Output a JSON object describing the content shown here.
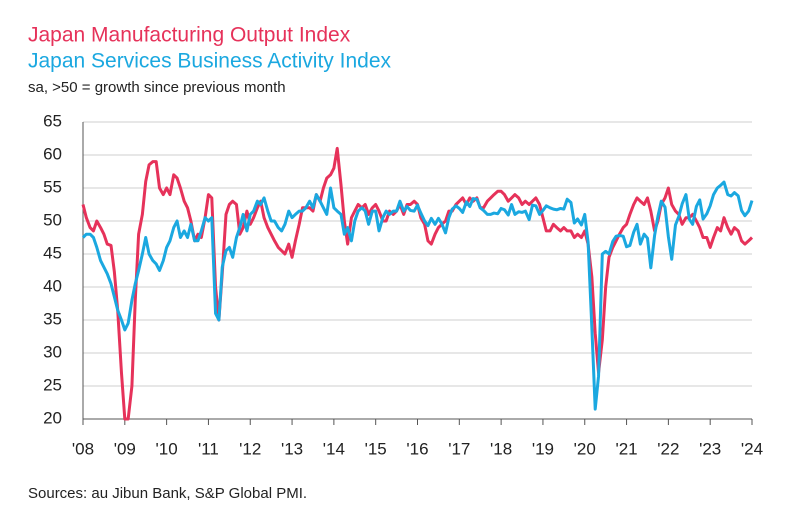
{
  "chart_data": {
    "type": "line",
    "title": "Japan Manufacturing Output Index",
    "subtitle": "Japan Services Business Activity Index",
    "y_label": "sa, >50 = growth since previous month",
    "source": "Sources: au Jibun Bank, S&P Global PMI.",
    "grid": true,
    "ylim": [
      20,
      65
    ],
    "yticks": [
      20,
      25,
      30,
      35,
      40,
      45,
      50,
      55,
      60,
      65
    ],
    "xlim": [
      2008,
      2024
    ],
    "xticks": [
      {
        "value": 2008,
        "label": "'08"
      },
      {
        "value": 2009,
        "label": "'09"
      },
      {
        "value": 2010,
        "label": "'10"
      },
      {
        "value": 2011,
        "label": "'11"
      },
      {
        "value": 2012,
        "label": "'12"
      },
      {
        "value": 2013,
        "label": "'13"
      },
      {
        "value": 2014,
        "label": "'14"
      },
      {
        "value": 2015,
        "label": "'15"
      },
      {
        "value": 2016,
        "label": "'16"
      },
      {
        "value": 2017,
        "label": "'17"
      },
      {
        "value": 2018,
        "label": "'18"
      },
      {
        "value": 2019,
        "label": "'19"
      },
      {
        "value": 2020,
        "label": "'20"
      },
      {
        "value": 2021,
        "label": "'21"
      },
      {
        "value": 2022,
        "label": "'22"
      },
      {
        "value": 2023,
        "label": "'23"
      },
      {
        "value": 2024,
        "label": "'24"
      }
    ],
    "x": [
      2008,
      2008.08,
      2008.17,
      2008.25,
      2008.33,
      2008.42,
      2008.5,
      2008.58,
      2008.67,
      2008.75,
      2008.83,
      2008.92,
      2009,
      2009.08,
      2009.17,
      2009.25,
      2009.33,
      2009.42,
      2009.5,
      2009.58,
      2009.67,
      2009.75,
      2009.83,
      2009.92,
      2010,
      2010.08,
      2010.17,
      2010.25,
      2010.33,
      2010.42,
      2010.5,
      2010.58,
      2010.67,
      2010.75,
      2010.83,
      2010.92,
      2011,
      2011.08,
      2011.17,
      2011.25,
      2011.33,
      2011.42,
      2011.5,
      2011.58,
      2011.67,
      2011.75,
      2011.83,
      2011.92,
      2012,
      2012.08,
      2012.17,
      2012.25,
      2012.33,
      2012.42,
      2012.5,
      2012.58,
      2012.67,
      2012.75,
      2012.83,
      2012.92,
      2013,
      2013.08,
      2013.17,
      2013.25,
      2013.33,
      2013.42,
      2013.5,
      2013.58,
      2013.67,
      2013.75,
      2013.83,
      2013.92,
      2014,
      2014.08,
      2014.17,
      2014.25,
      2014.33,
      2014.42,
      2014.5,
      2014.58,
      2014.67,
      2014.75,
      2014.83,
      2014.92,
      2015,
      2015.08,
      2015.17,
      2015.25,
      2015.33,
      2015.42,
      2015.5,
      2015.58,
      2015.67,
      2015.75,
      2015.83,
      2015.92,
      2016,
      2016.08,
      2016.17,
      2016.25,
      2016.33,
      2016.42,
      2016.5,
      2016.58,
      2016.67,
      2016.75,
      2016.83,
      2016.92,
      2017,
      2017.08,
      2017.17,
      2017.25,
      2017.33,
      2017.42,
      2017.5,
      2017.58,
      2017.67,
      2017.75,
      2017.83,
      2017.92,
      2018,
      2018.08,
      2018.17,
      2018.25,
      2018.33,
      2018.42,
      2018.5,
      2018.58,
      2018.67,
      2018.75,
      2018.83,
      2018.92,
      2019,
      2019.08,
      2019.17,
      2019.25,
      2019.33,
      2019.42,
      2019.5,
      2019.58,
      2019.67,
      2019.75,
      2019.83,
      2019.92,
      2020,
      2020.08,
      2020.17,
      2020.25,
      2020.33,
      2020.42,
      2020.5,
      2020.58,
      2020.67,
      2020.75,
      2020.83,
      2020.92,
      2021,
      2021.08,
      2021.17,
      2021.25,
      2021.33,
      2021.42,
      2021.5,
      2021.58,
      2021.67,
      2021.75,
      2021.83,
      2021.92,
      2022,
      2022.08,
      2022.17,
      2022.25,
      2022.33,
      2022.42,
      2022.5,
      2022.58,
      2022.67,
      2022.75,
      2022.83,
      2022.92,
      2023,
      2023.08,
      2023.17,
      2023.25,
      2023.33,
      2023.42,
      2023.5,
      2023.58,
      2023.67,
      2023.75,
      2023.83,
      2023.92,
      2024
    ],
    "series": [
      {
        "name": "Japan Manufacturing Output Index",
        "color": "#e6325a",
        "values": [
          52.5,
          50.5,
          49,
          48.5,
          50,
          49,
          48,
          46.5,
          46.3,
          42.3,
          36.5,
          27,
          20,
          20,
          25,
          38,
          48,
          51,
          56,
          58.5,
          59,
          59,
          55,
          54,
          55,
          54,
          57,
          56.5,
          55,
          53,
          52,
          50,
          47,
          48,
          47.5,
          50.5,
          54,
          53.5,
          40,
          35,
          42,
          51,
          52.5,
          53,
          52.5,
          48,
          49,
          51.5,
          49.5,
          50.5,
          52,
          53,
          50.5,
          49,
          48,
          47,
          46,
          45.5,
          45,
          46.5,
          44.5,
          47,
          49.5,
          52,
          52,
          52,
          51.5,
          54,
          53,
          55,
          56.5,
          57,
          58,
          61,
          55.5,
          50,
          46.5,
          50.5,
          51.5,
          52.5,
          52,
          52.5,
          51,
          52,
          52.5,
          51.5,
          50,
          50,
          51.5,
          51,
          51.5,
          52.5,
          51,
          52.5,
          52.5,
          53,
          52.5,
          50.5,
          49.5,
          47,
          46.5,
          48,
          49,
          49.5,
          50,
          51.5,
          51.5,
          52.5,
          53,
          53.5,
          52.5,
          53.5,
          53,
          53.5,
          52,
          52,
          53,
          53.5,
          54,
          54.5,
          54.5,
          54,
          53,
          53.5,
          54,
          53.5,
          52.5,
          53,
          52.5,
          53,
          53.5,
          52.5,
          50.5,
          48.5,
          48.5,
          49.5,
          49,
          48.5,
          49,
          48.5,
          48.5,
          47.5,
          48,
          47.5,
          48.5,
          46.5,
          41.5,
          33,
          27,
          32,
          40,
          44.5,
          46,
          47,
          48,
          49,
          49.5,
          51,
          52.5,
          53.5,
          53,
          52.5,
          53.5,
          51.5,
          48.5,
          50,
          52.5,
          53.5,
          55,
          52.5,
          51.5,
          51,
          49.5,
          50.5,
          50.5,
          51,
          50,
          49,
          47.5,
          47.5,
          46,
          47.5,
          49,
          48.5,
          50.5,
          49,
          48,
          49,
          48.5,
          47,
          46.5,
          47,
          47.5
        ]
      },
      {
        "name": "Japan Services Business Activity Index",
        "color": "#1ba8e0",
        "values": [
          47.5,
          48,
          48,
          47.5,
          46,
          44,
          43,
          42,
          40.5,
          38.5,
          36.5,
          35,
          33.5,
          34.5,
          38,
          40.5,
          42.5,
          45,
          47.5,
          45,
          44,
          43.5,
          42.5,
          44,
          46,
          47,
          49,
          50,
          47.5,
          48.5,
          47.5,
          49.5,
          47,
          47,
          48.5,
          50.5,
          50,
          50.5,
          36,
          35,
          43,
          45.5,
          46,
          44.5,
          47.5,
          49,
          51,
          48.5,
          51,
          51.5,
          53,
          52.5,
          53.5,
          51.5,
          50,
          50,
          49,
          48.5,
          49.5,
          51.5,
          50.5,
          51,
          51.5,
          51.5,
          52,
          53,
          52,
          54,
          53,
          52,
          51,
          55,
          52,
          51.5,
          51,
          48,
          49,
          47,
          50,
          51.5,
          52,
          51.5,
          49.5,
          51.5,
          51.5,
          48.5,
          50.5,
          51.5,
          51,
          51.5,
          51.5,
          53,
          51.5,
          52.2,
          51.6,
          51.5,
          52.4,
          51.2,
          50,
          49.3,
          50.4,
          49.5,
          50.4,
          49.6,
          48.2,
          50.5,
          51.8,
          52.3,
          51.9,
          51.3,
          52.9,
          52.2,
          53.4,
          53.3,
          52,
          51.6,
          51,
          51,
          51.2,
          51.1,
          51.9,
          51.7,
          50.9,
          52.5,
          51,
          51.4,
          51.3,
          51.5,
          50.2,
          52.4,
          52.3,
          51,
          51.6,
          52.3,
          52,
          51.8,
          51.7,
          51.9,
          51.8,
          53.3,
          52.8,
          49.7,
          50.3,
          49.4,
          51,
          46.8,
          33.8,
          21.5,
          26.5,
          45,
          45.4,
          45,
          46.9,
          47.7,
          47.8,
          47.7,
          46.1,
          46.3,
          48.3,
          49.5,
          46.5,
          48,
          47.4,
          42.9,
          47.8,
          50.7,
          53,
          52.1,
          47.6,
          44.2,
          49.4,
          50.7,
          52.6,
          54,
          50.3,
          49.5,
          52.2,
          53.2,
          50.3,
          51.1,
          52.3,
          54,
          55,
          55.4,
          55.9,
          54,
          53.8,
          54.3,
          53.8,
          51.6,
          50.8,
          51.5,
          53.1
        ]
      }
    ]
  }
}
